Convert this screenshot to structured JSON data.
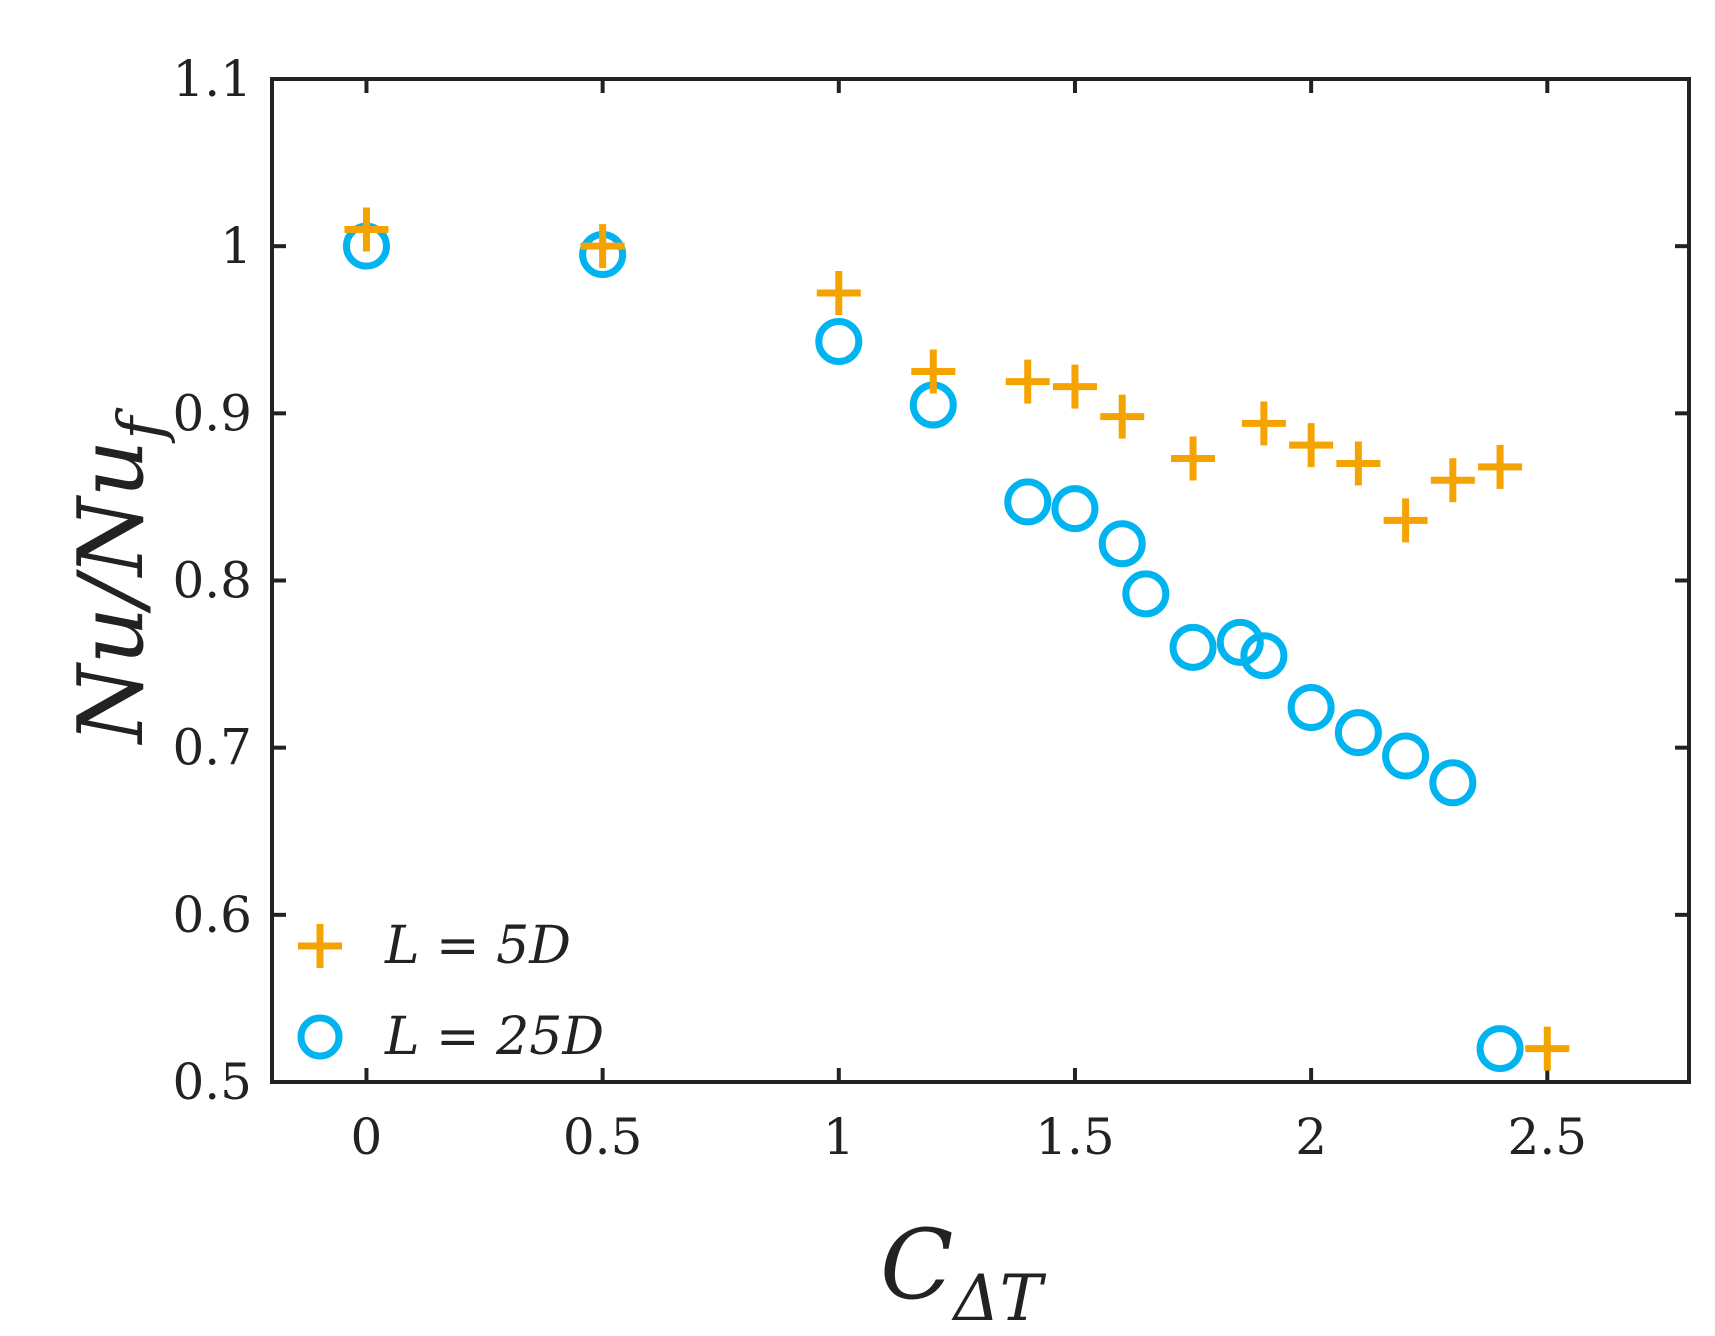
{
  "chart_data": {
    "type": "scatter",
    "title": "",
    "xlabel": "C_ΔT",
    "xlabel_main": "C",
    "xlabel_sub": "ΔT",
    "ylabel": "Nu/Nu_f",
    "ylabel_main": "Nu/Nu",
    "ylabel_sub": "f",
    "xlim": [
      -0.2,
      2.8
    ],
    "ylim": [
      0.5,
      1.1
    ],
    "xticks": [
      0,
      0.5,
      1,
      1.5,
      2,
      2.5
    ],
    "xtick_labels": [
      "0",
      "0.5",
      "1",
      "1.5",
      "2",
      "2.5"
    ],
    "yticks": [
      0.5,
      0.6,
      0.7,
      0.8,
      0.9,
      1.0,
      1.1
    ],
    "ytick_labels": [
      "0.5",
      "0.6",
      "0.7",
      "0.8",
      "0.9",
      "1",
      "1.1"
    ],
    "grid": false,
    "legend_position": "bottom-left",
    "series": [
      {
        "name": "L = 5D",
        "marker": "plus",
        "color": "#F5A300",
        "x": [
          0,
          0.5,
          1,
          1.2,
          1.4,
          1.5,
          1.6,
          1.75,
          1.9,
          2.0,
          2.1,
          2.2,
          2.3,
          2.4,
          2.5
        ],
        "y": [
          1.01,
          1.0,
          0.972,
          0.925,
          0.919,
          0.916,
          0.898,
          0.873,
          0.894,
          0.881,
          0.87,
          0.836,
          0.86,
          0.868,
          0.52
        ]
      },
      {
        "name": "L = 25D",
        "marker": "circle",
        "color": "#00B4F0",
        "x": [
          0,
          0.5,
          1,
          1.2,
          1.4,
          1.5,
          1.6,
          1.65,
          1.75,
          1.85,
          1.9,
          2.0,
          2.1,
          2.2,
          2.3,
          2.4
        ],
        "y": [
          1.0,
          0.995,
          0.943,
          0.905,
          0.847,
          0.843,
          0.822,
          0.792,
          0.76,
          0.763,
          0.755,
          0.724,
          0.709,
          0.695,
          0.679,
          0.52
        ]
      }
    ]
  }
}
